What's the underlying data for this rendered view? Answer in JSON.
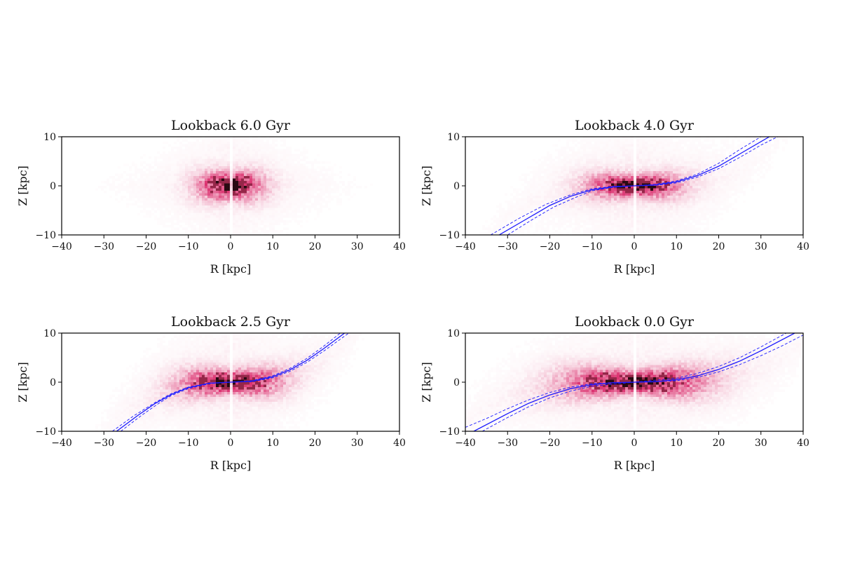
{
  "chart_data": [
    {
      "type": "heatmap",
      "title": "Lookback 6.0 Gyr",
      "xlabel": "R [kpc]",
      "ylabel": "Z [kpc]",
      "xlim": [
        -40,
        40
      ],
      "ylim": [
        -10,
        10
      ],
      "xticks": [
        "−40",
        "−30",
        "−20",
        "−10",
        "0",
        "10",
        "20",
        "30",
        "40"
      ],
      "yticks": [
        "10",
        "0",
        "−10"
      ],
      "density": {
        "spread_r": 6.5,
        "spread_z": 2.2,
        "warp_amp": 0.0,
        "warp_start": 99,
        "hr_halo": 12,
        "color": "#d6145b"
      },
      "warp_fit": null
    },
    {
      "type": "heatmap",
      "title": "Lookback 4.0 Gyr",
      "xlabel": "R [kpc]",
      "ylabel": "Z [kpc]",
      "xlim": [
        -40,
        40
      ],
      "ylim": [
        -10,
        10
      ],
      "xticks": [
        "−40",
        "−30",
        "−20",
        "−10",
        "0",
        "10",
        "20",
        "30",
        "40"
      ],
      "yticks": [
        "10",
        "0",
        "−10"
      ],
      "density": {
        "spread_r": 9,
        "spread_z": 1.6,
        "warp_amp": 0.00035,
        "warp_start": 4,
        "hr_halo": 16,
        "color": "#d6145b"
      },
      "warp_fit": {
        "color": "#1a1aff",
        "solid": [
          [
            -32,
            -10
          ],
          [
            -25,
            -6.5
          ],
          [
            -20,
            -4.0
          ],
          [
            -15,
            -2.1
          ],
          [
            -10,
            -0.8
          ],
          [
            -5,
            -0.2
          ],
          [
            0,
            0
          ],
          [
            5,
            0.2
          ],
          [
            10,
            0.8
          ],
          [
            15,
            2.1
          ],
          [
            20,
            4.0
          ],
          [
            25,
            6.5
          ],
          [
            32,
            10
          ]
        ],
        "dashed_upper": [
          [
            -34,
            -10
          ],
          [
            -27,
            -6.5
          ],
          [
            -21,
            -3.8
          ],
          [
            -15,
            -1.8
          ],
          [
            -10,
            -0.6
          ],
          [
            -5,
            -0.1
          ],
          [
            0,
            0
          ],
          [
            5,
            0.3
          ],
          [
            10,
            1.0
          ],
          [
            15,
            2.4
          ],
          [
            20,
            4.6
          ],
          [
            25,
            7.4
          ],
          [
            30,
            10
          ]
        ],
        "dashed_lower": [
          [
            -30,
            -10
          ],
          [
            -24,
            -6.8
          ],
          [
            -19,
            -4.3
          ],
          [
            -14,
            -2.4
          ],
          [
            -10,
            -1.0
          ],
          [
            -5,
            -0.3
          ],
          [
            0,
            0
          ],
          [
            5,
            0.1
          ],
          [
            10,
            0.6
          ],
          [
            15,
            1.8
          ],
          [
            20,
            3.5
          ],
          [
            25,
            5.8
          ],
          [
            30,
            8.3
          ],
          [
            34,
            10
          ]
        ]
      }
    },
    {
      "type": "heatmap",
      "title": "Lookback 2.5 Gyr",
      "xlabel": "R [kpc]",
      "ylabel": "Z [kpc]",
      "xlim": [
        -40,
        40
      ],
      "ylim": [
        -10,
        10
      ],
      "xticks": [
        "−40",
        "−30",
        "−20",
        "−10",
        "0",
        "10",
        "20",
        "30",
        "40"
      ],
      "yticks": [
        "10",
        "0",
        "−10"
      ],
      "density": {
        "spread_r": 10,
        "spread_z": 1.8,
        "warp_amp": 0.0006,
        "warp_start": 3,
        "hr_halo": 18,
        "color": "#d6145b"
      },
      "warp_fit": {
        "color": "#1a1aff",
        "solid": [
          [
            -27,
            -10
          ],
          [
            -22,
            -6.8
          ],
          [
            -18,
            -4.4
          ],
          [
            -14,
            -2.5
          ],
          [
            -10,
            -1.1
          ],
          [
            -5,
            -0.2
          ],
          [
            0,
            0
          ],
          [
            5,
            0.2
          ],
          [
            10,
            1.1
          ],
          [
            14,
            2.5
          ],
          [
            18,
            4.4
          ],
          [
            22,
            6.8
          ],
          [
            27,
            10
          ]
        ],
        "dashed_upper": [
          [
            -28,
            -10
          ],
          [
            -23,
            -6.9
          ],
          [
            -18,
            -4.2
          ],
          [
            -14,
            -2.3
          ],
          [
            -10,
            -1.0
          ],
          [
            -5,
            -0.2
          ],
          [
            0,
            0
          ],
          [
            5,
            0.3
          ],
          [
            10,
            1.3
          ],
          [
            14,
            2.8
          ],
          [
            18,
            4.8
          ],
          [
            22,
            7.3
          ],
          [
            26,
            10
          ]
        ],
        "dashed_lower": [
          [
            -26,
            -10
          ],
          [
            -21,
            -6.7
          ],
          [
            -17,
            -4.3
          ],
          [
            -14,
            -2.7
          ],
          [
            -10,
            -1.3
          ],
          [
            -5,
            -0.3
          ],
          [
            0,
            0
          ],
          [
            5,
            0.1
          ],
          [
            10,
            0.9
          ],
          [
            14,
            2.2
          ],
          [
            18,
            4.0
          ],
          [
            22,
            6.3
          ],
          [
            28,
            10
          ]
        ]
      }
    },
    {
      "type": "heatmap",
      "title": "Lookback 0.0 Gyr",
      "xlabel": "R [kpc]",
      "ylabel": "Z [kpc]",
      "xlim": [
        -40,
        40
      ],
      "ylim": [
        -10,
        10
      ],
      "xticks": [
        "−40",
        "−30",
        "−20",
        "−10",
        "0",
        "10",
        "20",
        "30",
        "40"
      ],
      "yticks": [
        "10",
        "0",
        "−10"
      ],
      "density": {
        "spread_r": 14,
        "spread_z": 1.7,
        "warp_amp": 0.00022,
        "warp_start": 6,
        "hr_halo": 24,
        "color": "#d6145b"
      },
      "warp_fit": {
        "color": "#1a1aff",
        "solid": [
          [
            -38,
            -10
          ],
          [
            -30,
            -6.4
          ],
          [
            -25,
            -4.3
          ],
          [
            -20,
            -2.6
          ],
          [
            -15,
            -1.3
          ],
          [
            -10,
            -0.5
          ],
          [
            -5,
            -0.1
          ],
          [
            0,
            0
          ],
          [
            5,
            0.1
          ],
          [
            10,
            0.5
          ],
          [
            15,
            1.3
          ],
          [
            20,
            2.6
          ],
          [
            25,
            4.3
          ],
          [
            30,
            6.4
          ],
          [
            38,
            10
          ]
        ],
        "dashed_upper": [
          [
            -40,
            -9.2
          ],
          [
            -35,
            -7.4
          ],
          [
            -30,
            -5.4
          ],
          [
            -25,
            -3.6
          ],
          [
            -20,
            -2.1
          ],
          [
            -15,
            -1.0
          ],
          [
            -10,
            -0.3
          ],
          [
            0,
            0
          ],
          [
            10,
            0.8
          ],
          [
            15,
            1.8
          ],
          [
            20,
            3.2
          ],
          [
            25,
            5.0
          ],
          [
            30,
            7.2
          ],
          [
            36,
            10
          ]
        ],
        "dashed_lower": [
          [
            -36,
            -10
          ],
          [
            -30,
            -7.2
          ],
          [
            -25,
            -5.0
          ],
          [
            -20,
            -3.2
          ],
          [
            -15,
            -1.8
          ],
          [
            -10,
            -0.8
          ],
          [
            0,
            0
          ],
          [
            10,
            0.3
          ],
          [
            15,
            1.0
          ],
          [
            20,
            2.1
          ],
          [
            25,
            3.6
          ],
          [
            30,
            5.4
          ],
          [
            35,
            7.4
          ],
          [
            40,
            9.6
          ]
        ]
      }
    }
  ]
}
